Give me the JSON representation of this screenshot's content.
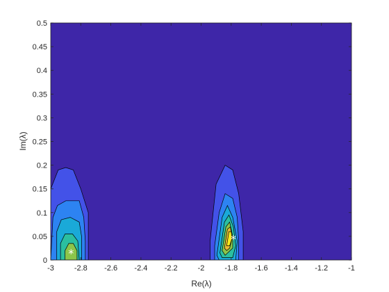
{
  "chart_data": {
    "type": "contour",
    "title": "",
    "xlabel": "Re(λ)",
    "ylabel": "Im(λ)",
    "xlim": [
      -3,
      -1
    ],
    "ylim": [
      0,
      0.5
    ],
    "xticks": [
      -3,
      -2.8,
      -2.6,
      -2.4,
      -2.2,
      -2,
      -1.8,
      -1.6,
      -1.4,
      -1.2,
      -1
    ],
    "xtick_labels": [
      "-3",
      "-2.8",
      "-2.6",
      "-2.4",
      "-2.2",
      "-2",
      "-1.8",
      "-1.6",
      "-1.4",
      "-1.2",
      "-1"
    ],
    "yticks": [
      0,
      0.05,
      0.1,
      0.15,
      0.2,
      0.25,
      0.3,
      0.35,
      0.4,
      0.45,
      0.5
    ],
    "ytick_labels": [
      "0",
      "0.05",
      "0.1",
      "0.15",
      "0.2",
      "0.25",
      "0.3",
      "0.35",
      "0.4",
      "0.45",
      "0.5"
    ],
    "background_color": "#3e26a8",
    "level_colors": [
      "#3e26a8",
      "#4352e8",
      "#2d83f2",
      "#1aa9d8",
      "#2bbfa0",
      "#8cc54a",
      "#e7b932",
      "#f9e81c"
    ],
    "grid": false,
    "peaks": [
      {
        "center": [
          -2.865,
          0.015
        ],
        "levels": [
          [
            [
              -3.0,
              0.0
            ],
            [
              -3.0,
              0.15
            ],
            [
              -2.95,
              0.19
            ],
            [
              -2.9,
              0.195
            ],
            [
              -2.85,
              0.19
            ],
            [
              -2.8,
              0.15
            ],
            [
              -2.75,
              0.1
            ],
            [
              -2.75,
              0.0
            ]
          ],
          [
            [
              -3.0,
              0.0
            ],
            [
              -2.985,
              0.09
            ],
            [
              -2.955,
              0.115
            ],
            [
              -2.9,
              0.125
            ],
            [
              -2.81,
              0.125
            ],
            [
              -2.78,
              0.09
            ],
            [
              -2.77,
              0.04
            ],
            [
              -2.77,
              0.0
            ]
          ],
          [
            [
              -2.96,
              0.0
            ],
            [
              -2.96,
              0.06
            ],
            [
              -2.93,
              0.085
            ],
            [
              -2.87,
              0.09
            ],
            [
              -2.81,
              0.08
            ],
            [
              -2.795,
              0.05
            ],
            [
              -2.795,
              0.0
            ]
          ],
          [
            [
              -2.935,
              0.0
            ],
            [
              -2.935,
              0.035
            ],
            [
              -2.905,
              0.055
            ],
            [
              -2.855,
              0.055
            ],
            [
              -2.82,
              0.04
            ],
            [
              -2.81,
              0.0
            ]
          ],
          [
            [
              -2.905,
              0.0
            ],
            [
              -2.905,
              0.02
            ],
            [
              -2.88,
              0.035
            ],
            [
              -2.85,
              0.035
            ],
            [
              -2.825,
              0.02
            ],
            [
              -2.825,
              0.0
            ]
          ]
        ]
      },
      {
        "center": [
          -1.785,
          0.045
        ],
        "levels": [
          [
            [
              -1.94,
              0.0
            ],
            [
              -1.94,
              0.04
            ],
            [
              -1.9,
              0.16
            ],
            [
              -1.84,
              0.2
            ],
            [
              -1.79,
              0.19
            ],
            [
              -1.75,
              0.14
            ],
            [
              -1.72,
              0.06
            ],
            [
              -1.72,
              0.0
            ]
          ],
          [
            [
              -1.91,
              0.0
            ],
            [
              -1.91,
              0.03
            ],
            [
              -1.88,
              0.1
            ],
            [
              -1.84,
              0.14
            ],
            [
              -1.79,
              0.13
            ],
            [
              -1.76,
              0.09
            ],
            [
              -1.75,
              0.04
            ],
            [
              -1.75,
              0.0
            ]
          ],
          [
            [
              -1.895,
              0.01
            ],
            [
              -1.86,
              0.09
            ],
            [
              -1.825,
              0.115
            ],
            [
              -1.79,
              0.09
            ],
            [
              -1.76,
              0.04
            ],
            [
              -1.77,
              0.0
            ],
            [
              -1.88,
              0.0
            ]
          ],
          [
            [
              -1.875,
              0.015
            ],
            [
              -1.845,
              0.08
            ],
            [
              -1.815,
              0.095
            ],
            [
              -1.785,
              0.07
            ],
            [
              -1.77,
              0.03
            ],
            [
              -1.79,
              0.005
            ],
            [
              -1.86,
              0.005
            ]
          ],
          [
            [
              -1.86,
              0.02
            ],
            [
              -1.835,
              0.07
            ],
            [
              -1.81,
              0.08
            ],
            [
              -1.79,
              0.05
            ],
            [
              -1.79,
              0.025
            ],
            [
              -1.84,
              0.01
            ]
          ],
          [
            [
              -1.845,
              0.025
            ],
            [
              -1.825,
              0.065
            ],
            [
              -1.805,
              0.07
            ],
            [
              -1.795,
              0.045
            ],
            [
              -1.81,
              0.025
            ],
            [
              -1.83,
              0.02
            ]
          ],
          [
            [
              -1.83,
              0.03
            ],
            [
              -1.815,
              0.06
            ],
            [
              -1.8,
              0.06
            ],
            [
              -1.795,
              0.045
            ],
            [
              -1.81,
              0.03
            ]
          ]
        ]
      }
    ],
    "markers": [
      {
        "x": -2.865,
        "y": 0.015,
        "symbol": "*",
        "color": "#ffffff"
      },
      {
        "x": -1.785,
        "y": 0.045,
        "symbol": "*",
        "color": "#ffffff"
      }
    ]
  }
}
